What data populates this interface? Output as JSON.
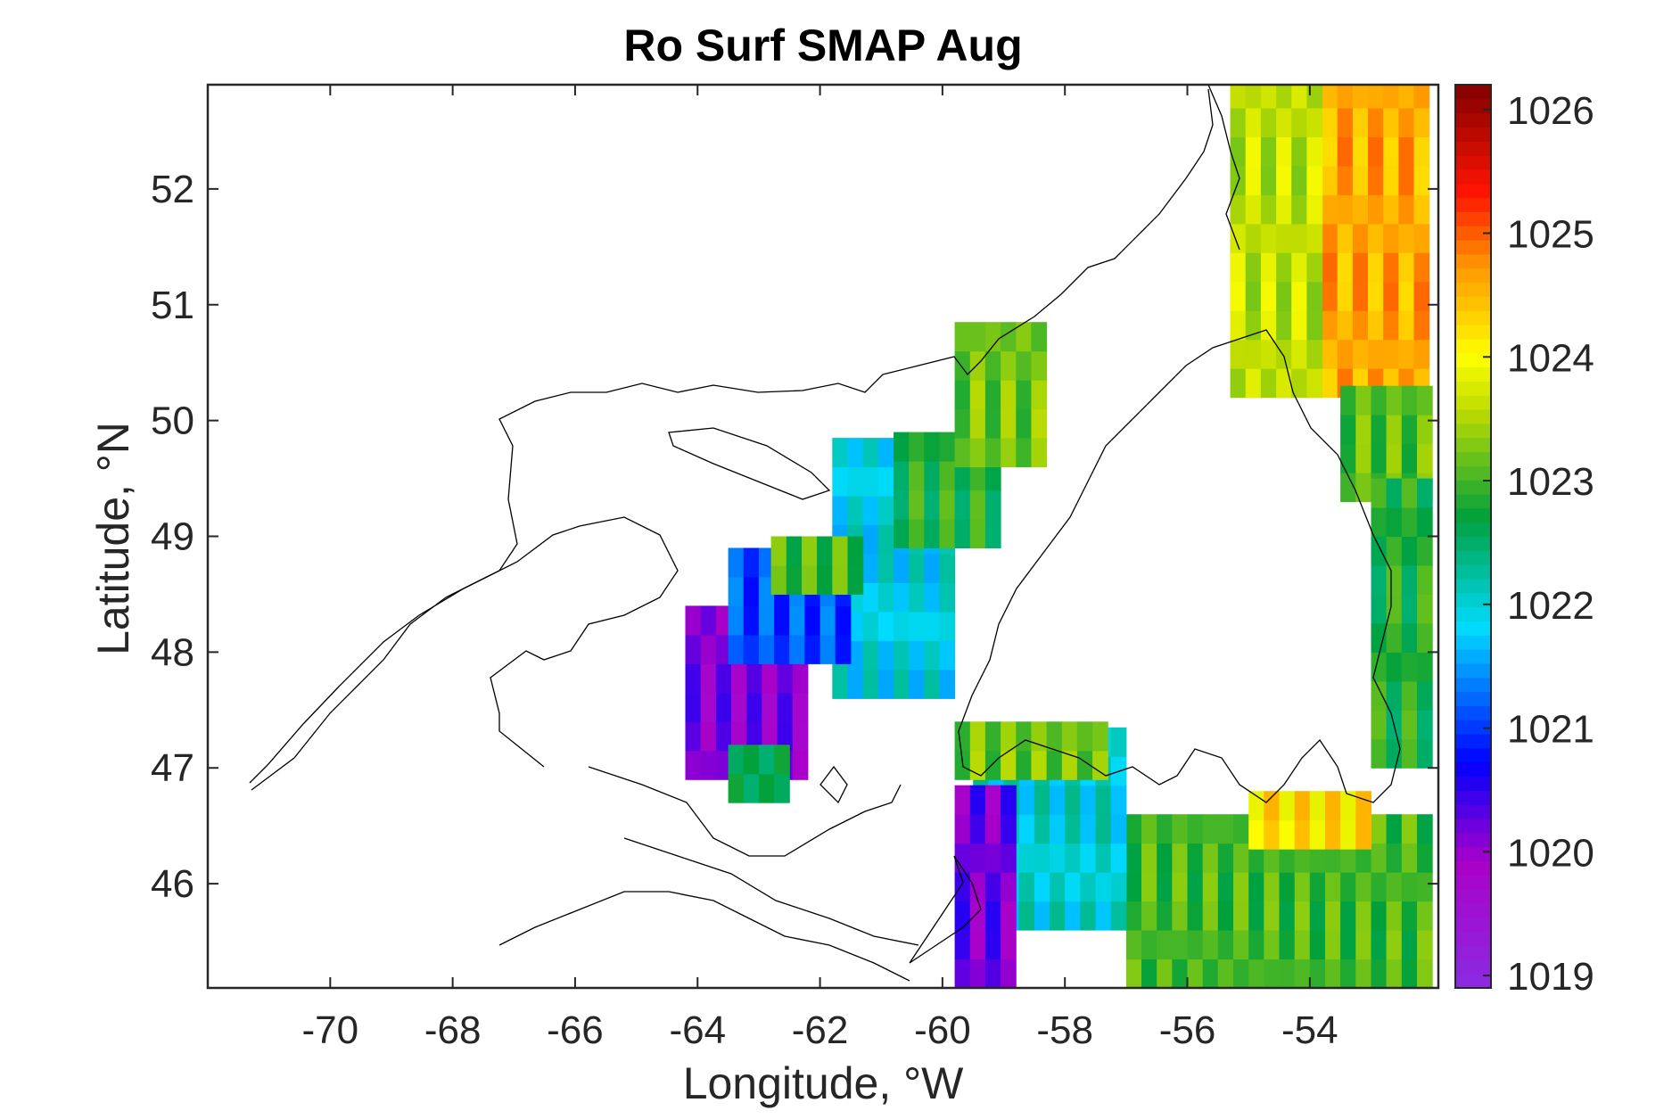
{
  "chart_data": {
    "type": "heatmap",
    "title": "Ro Surf SMAP Aug",
    "xlabel": "Longitude, °W",
    "ylabel": "Latitude, °N",
    "xlim": [
      -72,
      -51.9
    ],
    "ylim": [
      45.1,
      52.9
    ],
    "x_ticks": [
      -70,
      -68,
      -66,
      -64,
      -62,
      -60,
      -58,
      -56,
      -54
    ],
    "x_tick_labels": [
      "-70",
      "-68",
      "-66",
      "-64",
      "-62",
      "-60",
      "-58",
      "-56",
      "-54"
    ],
    "y_ticks": [
      46,
      47,
      48,
      49,
      50,
      51,
      52
    ],
    "y_tick_labels": [
      "46",
      "47",
      "48",
      "49",
      "50",
      "51",
      "52"
    ],
    "colorbar": {
      "range": [
        1018.9,
        1026.2
      ],
      "ticks": [
        1019,
        1020,
        1021,
        1022,
        1023,
        1024,
        1025,
        1026
      ],
      "tick_labels": [
        "1019",
        "1020",
        "1021",
        "1022",
        "1023",
        "1024",
        "1025",
        "1026"
      ],
      "colormap": "jet-like (violet → blue → cyan → green → yellow → orange → red → dark red)"
    },
    "grid": false,
    "overlay": "coastline contour (black)",
    "regions": [
      {
        "lon": [
          -55.3,
          -52.1
        ],
        "lat": [
          50.2,
          52.9
        ],
        "value": 1024.6
      },
      {
        "lon": [
          -55.3,
          -53.8
        ],
        "lat": [
          50.2,
          52.9
        ],
        "value": 1023.6
      },
      {
        "lon": [
          -53.5,
          -52.1
        ],
        "lat": [
          49.3,
          50.2
        ],
        "value": 1023.1
      },
      {
        "lon": [
          -53.0,
          -52.1
        ],
        "lat": [
          47.0,
          49.3
        ],
        "value": 1022.8
      },
      {
        "lon": [
          -57.0,
          -52.1
        ],
        "lat": [
          45.1,
          46.5
        ],
        "value": 1023.0
      },
      {
        "lon": [
          -55.0,
          -53.0
        ],
        "lat": [
          46.3,
          46.6
        ],
        "value": 1024.2
      },
      {
        "lon": [
          -59.5,
          -57.0
        ],
        "lat": [
          45.6,
          47.2
        ],
        "value": 1022.0
      },
      {
        "lon": [
          -59.8,
          -58.8
        ],
        "lat": [
          45.1,
          46.8
        ],
        "value": 1020.2
      },
      {
        "lon": [
          -61.8,
          -60.0
        ],
        "lat": [
          47.6,
          49.7
        ],
        "value": 1021.9
      },
      {
        "lon": [
          -60.8,
          -59.2
        ],
        "lat": [
          48.9,
          49.7
        ],
        "value": 1022.8
      },
      {
        "lon": [
          -59.8,
          -58.3
        ],
        "lat": [
          49.6,
          50.8
        ],
        "value": 1023.2
      },
      {
        "lon": [
          -64.2,
          -62.2
        ],
        "lat": [
          46.9,
          48.3
        ],
        "value": 1020.1
      },
      {
        "lon": [
          -63.5,
          -61.5
        ],
        "lat": [
          47.9,
          48.9
        ],
        "value": 1021.1
      },
      {
        "lon": [
          -62.8,
          -61.5
        ],
        "lat": [
          48.5,
          48.9
        ],
        "value": 1023.0
      },
      {
        "lon": [
          -63.5,
          -62.7
        ],
        "lat": [
          46.7,
          47.0
        ],
        "value": 1022.6
      },
      {
        "lon": [
          -59.8,
          -57.5
        ],
        "lat": [
          46.9,
          47.2
        ],
        "value": 1023.2
      }
    ]
  }
}
